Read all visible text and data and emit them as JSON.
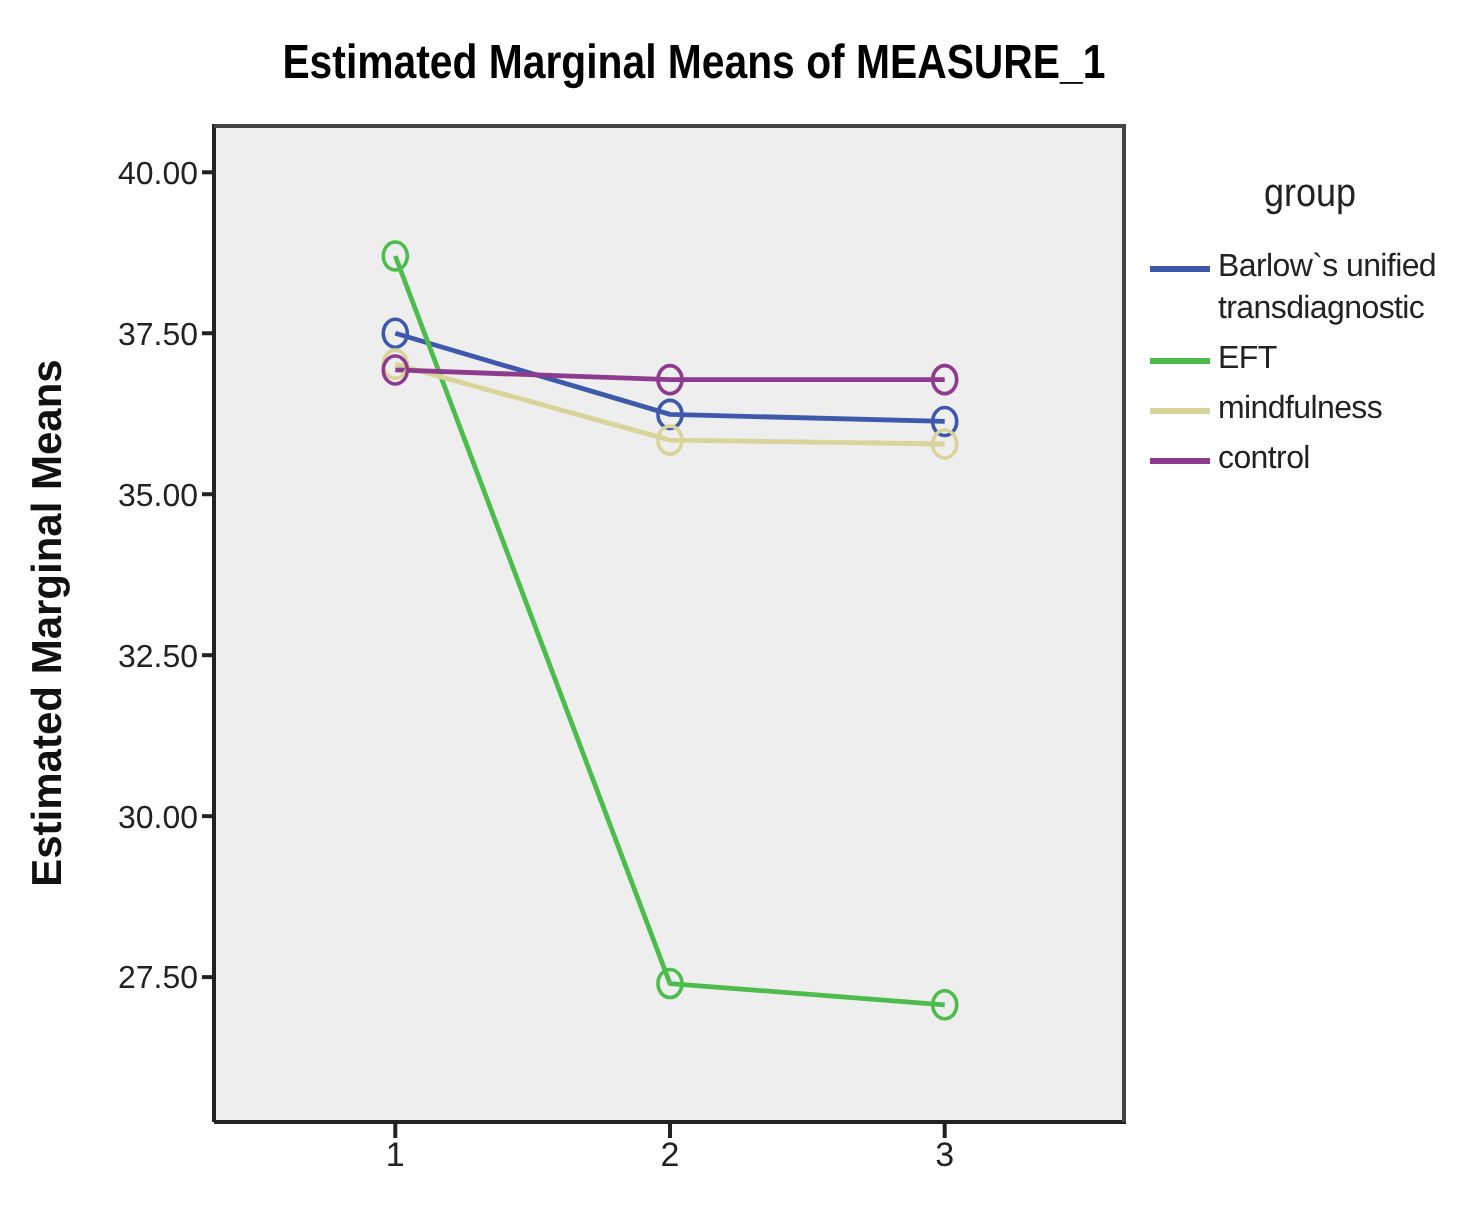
{
  "chart_data": {
    "type": "line",
    "title": "Estimated Marginal Means of MEASURE_1",
    "ylabel": "Estimated Marginal Means",
    "legend_title": "group",
    "categories": [
      "1",
      "2",
      "3"
    ],
    "series": [
      {
        "name": "Barlow`s unified transdiagnostic",
        "color": "#3e58ac",
        "values": [
          37.5,
          36.24,
          36.13
        ]
      },
      {
        "name": "EFT",
        "color": "#4cbd4c",
        "values": [
          38.7,
          27.4,
          27.07
        ]
      },
      {
        "name": "mindfulness",
        "color": "#d8d49a",
        "values": [
          37.02,
          35.84,
          35.78
        ]
      },
      {
        "name": "control",
        "color": "#8e3a8e",
        "values": [
          36.93,
          36.78,
          36.78
        ]
      }
    ],
    "ylim": [
      25.25,
      40.75
    ],
    "yticks": [
      {
        "value": 27.5,
        "label": "27.50"
      },
      {
        "value": 30,
        "label": "30.00"
      },
      {
        "value": 32.5,
        "label": "32.50"
      },
      {
        "value": 35,
        "label": "35.00"
      },
      {
        "value": 37.5,
        "label": "37.50"
      },
      {
        "value": 40,
        "label": "40.00"
      }
    ],
    "marker": "circle",
    "line_style": "solid",
    "grid": false,
    "legend": "right"
  }
}
